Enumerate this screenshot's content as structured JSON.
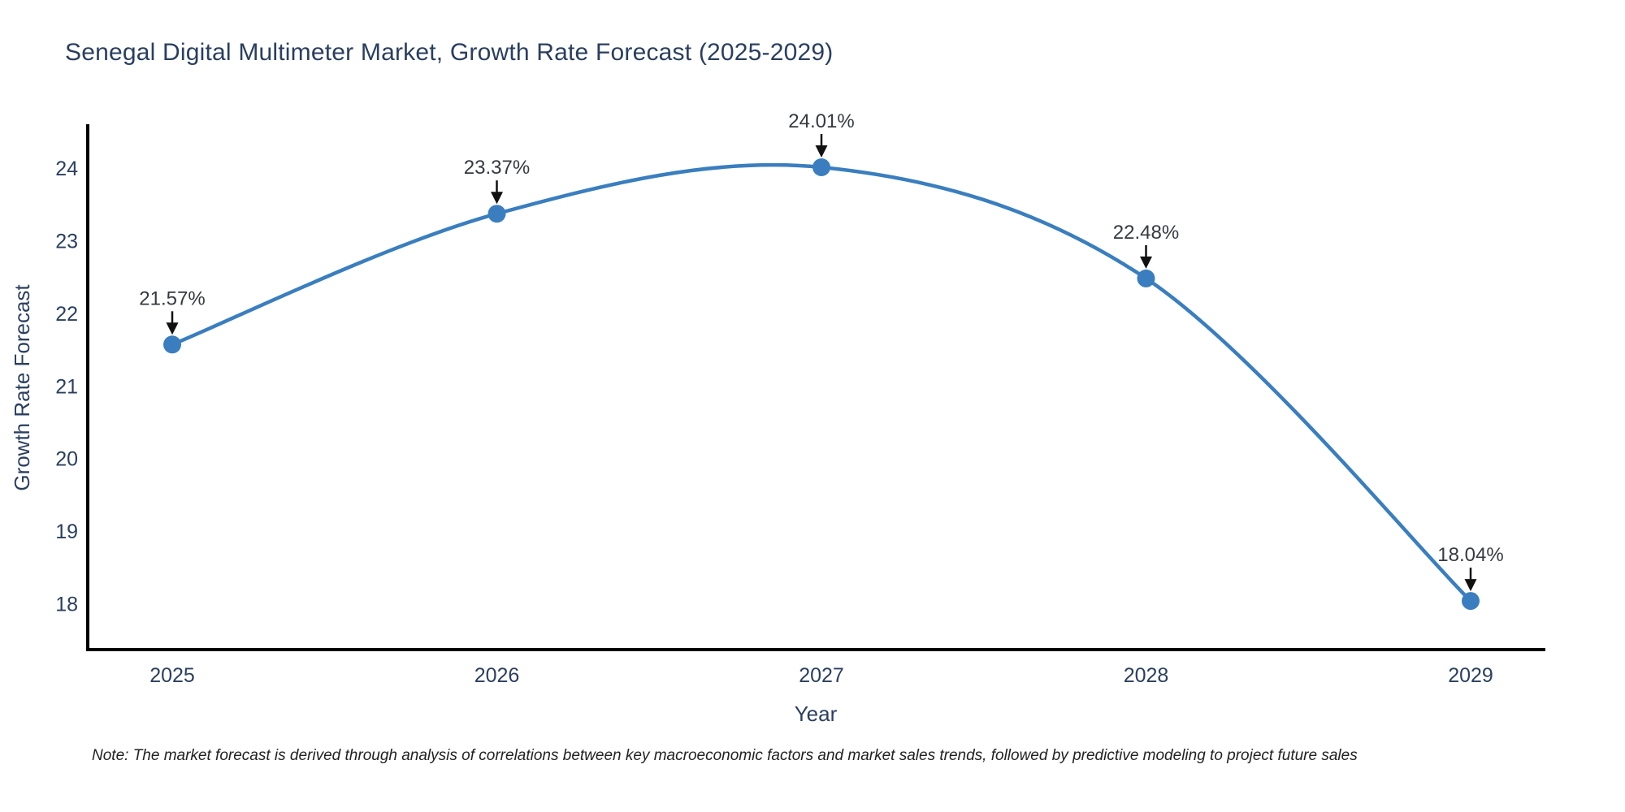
{
  "chart_data": {
    "type": "line",
    "line_shape": "spline",
    "title": "Senegal Digital Multimeter Market, Growth Rate Forecast (2025-2029)",
    "xlabel": "Year",
    "ylabel": "Growth Rate Forecast",
    "categories": [
      "2025",
      "2026",
      "2027",
      "2028",
      "2029"
    ],
    "values": [
      21.57,
      23.37,
      24.01,
      22.48,
      18.04
    ],
    "point_labels": [
      "21.57%",
      "23.37%",
      "24.01%",
      "22.48%",
      "18.04%"
    ],
    "yticks": [
      18,
      19,
      20,
      21,
      22,
      23,
      24
    ],
    "ylim": [
      17.37,
      24.58
    ],
    "grid": false,
    "legend": false,
    "note": "Note: The market forecast is derived through analysis of correlations between key macroeconomic factors and market sales trends, followed by predictive modeling to project future sales",
    "colors": {
      "line": "#3a7ebf",
      "marker": "#3a7ebf",
      "axis": "#000000",
      "arrow": "#111111",
      "title_text": "#2a3f5f",
      "tick_text": "#2a3f5f",
      "annotation_text": "#353a40",
      "note_text": "#222222",
      "background": "#ffffff"
    }
  }
}
